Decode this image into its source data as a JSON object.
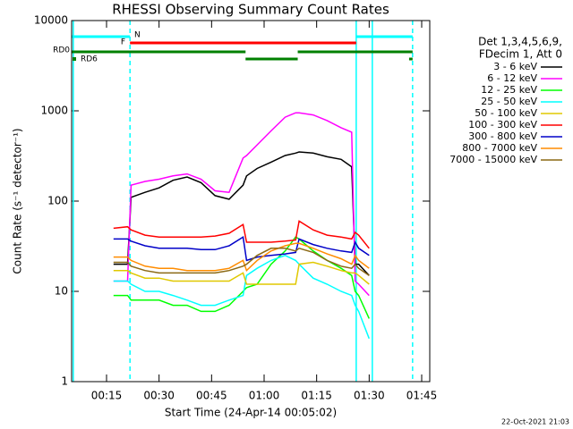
{
  "chart_data": {
    "type": "line",
    "title": "RHESSI Observing Summary Count Rates",
    "xlabel": "Start Time (24-Apr-14 00:05:02)",
    "ylabel": "Count Rate (s⁻¹ detector⁻¹)",
    "log_y": true,
    "xlim": [
      5.03,
      107.3
    ],
    "ylim": [
      1,
      10000
    ],
    "xticks": [
      {
        "value": 15,
        "label": "00:15"
      },
      {
        "value": 30,
        "label": "00:30"
      },
      {
        "value": 45,
        "label": "00:45"
      },
      {
        "value": 60,
        "label": "01:00"
      },
      {
        "value": 75,
        "label": "01:15"
      },
      {
        "value": 90,
        "label": "01:30"
      },
      {
        "value": 105,
        "label": "01:45"
      }
    ],
    "yticks": [
      1,
      10,
      100,
      1000,
      10000
    ],
    "legend_header": [
      "Det 1,3,4,5,6,9,",
      "FDecim 1, Att 0"
    ],
    "x": [
      17,
      21,
      22,
      26,
      30,
      34,
      38,
      42,
      46,
      50,
      54,
      55,
      58,
      62,
      66,
      69,
      70,
      74,
      78,
      82,
      85,
      86,
      87,
      90
    ],
    "series": [
      {
        "name": "3 - 6 keV",
        "color": "#000000",
        "values": [
          20,
          20,
          110,
          125,
          140,
          170,
          185,
          160,
          115,
          105,
          150,
          190,
          230,
          270,
          320,
          340,
          350,
          340,
          310,
          290,
          240,
          20,
          20,
          15
        ]
      },
      {
        "name": "6 - 12 keV",
        "color": "#ff00ff",
        "values": [
          13,
          13,
          150,
          165,
          175,
          190,
          200,
          175,
          130,
          125,
          300,
          320,
          420,
          600,
          850,
          950,
          950,
          900,
          780,
          650,
          580,
          13,
          12,
          9
        ]
      },
      {
        "name": "12 - 25 keV",
        "color": "#00ff00",
        "values": [
          9,
          9,
          8,
          8,
          8,
          7,
          7,
          6,
          6,
          7,
          10,
          11,
          12,
          20,
          28,
          40,
          38,
          28,
          22,
          18,
          15,
          10,
          9,
          5
        ]
      },
      {
        "name": "25 - 50 keV",
        "color": "#00ffff",
        "values": [
          13,
          13,
          12,
          10,
          10,
          9,
          8,
          7,
          7,
          8,
          9,
          15,
          18,
          22,
          25,
          22,
          20,
          14,
          12,
          10,
          9,
          7,
          6,
          3
        ]
      },
      {
        "name": "50 - 100 keV",
        "color": "#e0c800",
        "values": [
          17,
          17,
          16,
          14,
          14,
          13,
          13,
          13,
          13,
          13,
          16,
          12,
          12,
          12,
          12,
          12,
          20,
          21,
          19,
          17,
          16,
          16,
          15,
          12
        ]
      },
      {
        "name": "100 - 300 keV",
        "color": "#ff0000",
        "values": [
          50,
          52,
          48,
          42,
          40,
          40,
          40,
          40,
          41,
          44,
          55,
          35,
          35,
          35,
          36,
          37,
          60,
          48,
          42,
          40,
          38,
          45,
          42,
          30
        ]
      },
      {
        "name": "300 - 800 keV",
        "color": "#0000c8",
        "values": [
          38,
          38,
          36,
          32,
          30,
          30,
          30,
          29,
          29,
          32,
          40,
          22,
          24,
          25,
          26,
          27,
          38,
          33,
          30,
          28,
          27,
          35,
          30,
          25
        ]
      },
      {
        "name": "800 - 7000 keV",
        "color": "#ff8c00",
        "values": [
          24,
          24,
          22,
          19,
          18,
          18,
          17,
          17,
          17,
          18,
          22,
          17,
          22,
          28,
          32,
          34,
          34,
          30,
          26,
          23,
          20,
          25,
          22,
          18
        ]
      },
      {
        "name": "7000 - 15000 keV",
        "color": "#8b6914",
        "values": [
          21,
          21,
          19,
          17,
          16,
          16,
          16,
          16,
          16,
          17,
          19,
          20,
          25,
          30,
          30,
          28,
          30,
          27,
          22,
          19,
          18,
          20,
          18,
          15
        ]
      }
    ],
    "state_bars": [
      {
        "label": "N",
        "color": "#00ffff",
        "segments": [
          [
            5.03,
            21.7
          ],
          [
            86.3,
            102.4
          ]
        ]
      },
      {
        "label": "F",
        "color": "#ff0000",
        "segments": [
          [
            21.7,
            86.3
          ]
        ]
      },
      {
        "label": "RD0",
        "color": "#008000",
        "segments": [
          [
            5.03,
            54.7
          ],
          [
            69.6,
            102.4
          ]
        ]
      },
      {
        "label": "RD6",
        "color": "#008000",
        "segments": [
          [
            54.7,
            69.6
          ],
          [
            101.4,
            102.4
          ]
        ]
      }
    ],
    "vlines": [
      {
        "x": 5.5,
        "color": "#00ffff",
        "dashed": false
      },
      {
        "x": 21.7,
        "color": "#00ffff",
        "dashed": true
      },
      {
        "x": 86.3,
        "color": "#00ffff",
        "dashed": false
      },
      {
        "x": 90.9,
        "color": "#00ffff",
        "dashed": false
      },
      {
        "x": 102.4,
        "color": "#00ffff",
        "dashed": true
      }
    ],
    "footer": "22-Oct-2021 21:03"
  }
}
